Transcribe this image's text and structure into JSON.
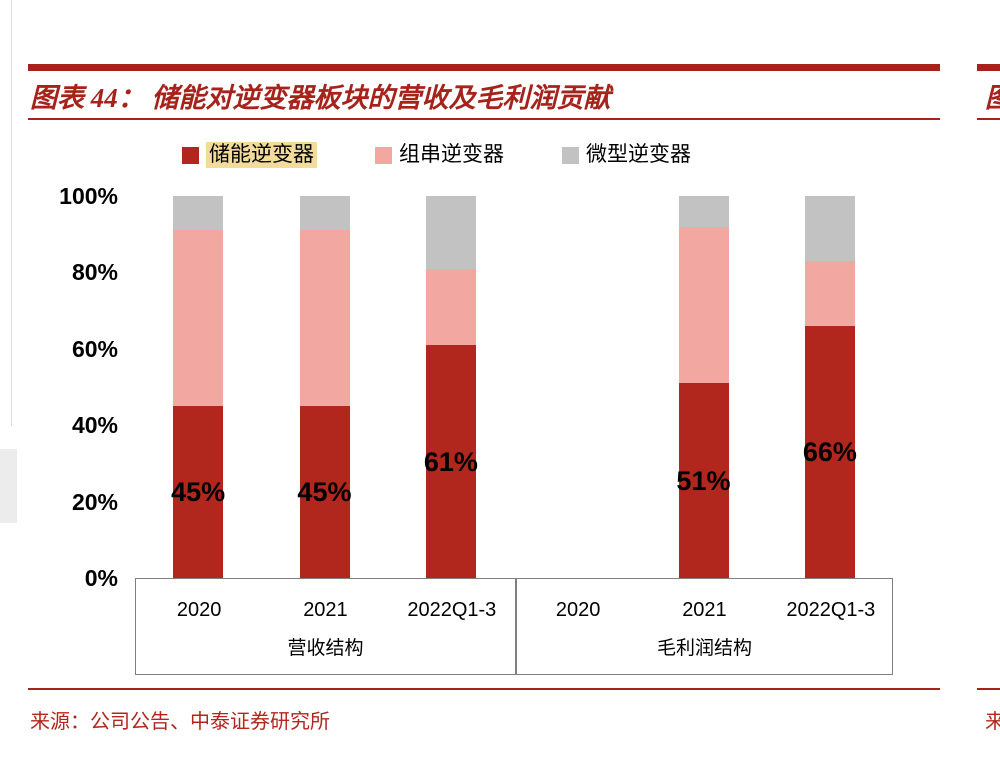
{
  "figure": {
    "title": "图表 44： 储能对逆变器板块的营收及毛利润贡献",
    "source": "来源：公司公告、中泰证券研究所"
  },
  "colors": {
    "accent_red": "#a6231c",
    "storage_red": "#b2271d",
    "string_pink": "#f2a8a0",
    "micro_gray": "#c2c2c2",
    "legend_highlight": "#f3dc9b",
    "axis_gray": "#7f7f7f"
  },
  "legend": {
    "items": [
      {
        "label": "储能逆变器",
        "color": "#b2271d",
        "highlighted": true
      },
      {
        "label": "组串逆变器",
        "color": "#f2a8a0",
        "highlighted": false
      },
      {
        "label": "微型逆变器",
        "color": "#c2c2c2",
        "highlighted": false
      }
    ]
  },
  "chart_data": {
    "type": "bar",
    "subtype": "stacked",
    "title": "图表 44： 储能对逆变器板块的营收及毛利润贡献",
    "categories": [
      "2020",
      "2021",
      "2022Q1-3",
      "2020",
      "2021",
      "2022Q1-3"
    ],
    "groups": [
      {
        "label": "营收结构",
        "span": 3
      },
      {
        "label": "毛利润结构",
        "span": 3
      }
    ],
    "series": [
      {
        "name": "储能逆变器",
        "color": "#b2271d",
        "values": [
          45,
          45,
          61,
          0,
          51,
          66
        ]
      },
      {
        "name": "组串逆变器",
        "color": "#f2a8a0",
        "values": [
          46,
          46,
          20,
          0,
          41,
          17
        ]
      },
      {
        "name": "微型逆变器",
        "color": "#c2c2c2",
        "values": [
          9,
          9,
          19,
          0,
          8,
          17
        ]
      }
    ],
    "bar_labels": [
      "45%",
      "45%",
      "61%",
      "",
      "51%",
      "66%"
    ],
    "ylim": [
      0,
      100
    ],
    "yticks": [
      "100%",
      "80%",
      "60%",
      "40%",
      "20%",
      "0%"
    ],
    "grid": false,
    "legend_position": "top"
  },
  "adjacent_page_fragment": {
    "top_text": "图",
    "bottom_text": "来"
  }
}
